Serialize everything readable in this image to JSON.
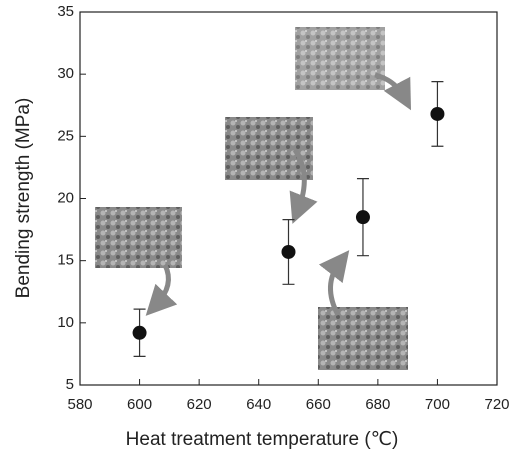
{
  "chart_data": {
    "type": "scatter",
    "x_label": "Heat treatment temperature (℃)",
    "y_label": "Bending strength (MPa)",
    "x": [
      600,
      650,
      675,
      700
    ],
    "series": [
      {
        "values": [
          9.2,
          15.7,
          18.5,
          26.8
        ],
        "errors": [
          1.9,
          2.6,
          3.1,
          2.6
        ],
        "color": "#111111"
      }
    ],
    "xlim": [
      580,
      720
    ],
    "xticks": [
      580,
      600,
      620,
      640,
      660,
      680,
      700,
      720
    ],
    "ylim": [
      5,
      35
    ],
    "yticks": [
      5,
      10,
      15,
      20,
      25,
      30,
      35
    ]
  }
}
